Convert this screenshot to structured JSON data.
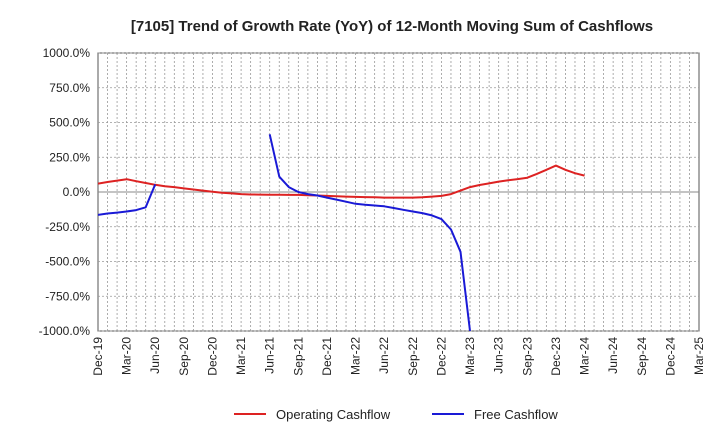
{
  "chart_data": {
    "type": "line",
    "title": "[7105]  Trend of Growth Rate (YoY) of 12-Month Moving Sum of Cashflows",
    "xlabel": "",
    "ylabel": "",
    "ylim": [
      -1000,
      1000
    ],
    "grid": true,
    "legend_position": "bottom",
    "x_tick_labels": [
      "Dec-19",
      "Mar-20",
      "Jun-20",
      "Sep-20",
      "Dec-20",
      "Mar-21",
      "Jun-21",
      "Sep-21",
      "Dec-21",
      "Mar-22",
      "Jun-22",
      "Sep-22",
      "Dec-22",
      "Mar-23",
      "Jun-23",
      "Sep-23",
      "Dec-23",
      "Mar-24",
      "Jun-24",
      "Sep-24",
      "Dec-24",
      "Mar-25"
    ],
    "y_tick_labels": [
      "1000.0%",
      "750.0%",
      "500.0%",
      "250.0%",
      "0.0%",
      "-250.0%",
      "-500.0%",
      "-750.0%",
      "-1000.0%"
    ],
    "y_ticks": [
      1000,
      750,
      500,
      250,
      0,
      -250,
      -500,
      -750,
      -1000
    ],
    "series": [
      {
        "name": "Operating Cashflow",
        "color": "#dd2222",
        "points": [
          [
            "Dec-19",
            60
          ],
          [
            "Jan-20",
            72
          ],
          [
            "Feb-20",
            82
          ],
          [
            "Mar-20",
            92
          ],
          [
            "Apr-20",
            78
          ],
          [
            "May-20",
            65
          ],
          [
            "Jun-20",
            52
          ],
          [
            "Jul-20",
            42
          ],
          [
            "Aug-20",
            35
          ],
          [
            "Sep-20",
            26
          ],
          [
            "Oct-20",
            18
          ],
          [
            "Nov-20",
            10
          ],
          [
            "Dec-20",
            2
          ],
          [
            "Jan-21",
            -5
          ],
          [
            "Feb-21",
            -10
          ],
          [
            "Mar-21",
            -15
          ],
          [
            "Apr-21",
            -18
          ],
          [
            "May-21",
            -19
          ],
          [
            "Jun-21",
            -20
          ],
          [
            "Jul-21",
            -20
          ],
          [
            "Aug-21",
            -21
          ],
          [
            "Sep-21",
            -21
          ],
          [
            "Oct-21",
            -23
          ],
          [
            "Nov-21",
            -25
          ],
          [
            "Dec-21",
            -28
          ],
          [
            "Jan-22",
            -31
          ],
          [
            "Feb-22",
            -33
          ],
          [
            "Mar-22",
            -35
          ],
          [
            "Apr-22",
            -37
          ],
          [
            "May-22",
            -38
          ],
          [
            "Jun-22",
            -40
          ],
          [
            "Jul-22",
            -40
          ],
          [
            "Aug-22",
            -40
          ],
          [
            "Sep-22",
            -40
          ],
          [
            "Oct-22",
            -38
          ],
          [
            "Nov-22",
            -33
          ],
          [
            "Dec-22",
            -28
          ],
          [
            "Jan-23",
            -15
          ],
          [
            "Feb-23",
            10
          ],
          [
            "Mar-23",
            35
          ],
          [
            "Apr-23",
            50
          ],
          [
            "May-23",
            62
          ],
          [
            "Jun-23",
            75
          ],
          [
            "Jul-23",
            85
          ],
          [
            "Aug-23",
            93
          ],
          [
            "Sep-23",
            103
          ],
          [
            "Oct-23",
            130
          ],
          [
            "Nov-23",
            160
          ],
          [
            "Dec-23",
            190
          ],
          [
            "Jan-24",
            160
          ],
          [
            "Feb-24",
            135
          ],
          [
            "Mar-24",
            118
          ]
        ]
      },
      {
        "name": "Free Cashflow",
        "color": "#1a1ad6",
        "segments": [
          [
            [
              "Dec-19",
              -165
            ],
            [
              "Jan-20",
              -155
            ],
            [
              "Feb-20",
              -148
            ],
            [
              "Mar-20",
              -140
            ],
            [
              "Apr-20",
              -130
            ],
            [
              "May-20",
              -110
            ],
            [
              "Jun-20",
              55
            ]
          ],
          [
            [
              "Jun-21",
              415
            ],
            [
              "Jul-21",
              110
            ],
            [
              "Aug-21",
              35
            ],
            [
              "Sep-21",
              0
            ],
            [
              "Oct-21",
              -15
            ],
            [
              "Nov-21",
              -25
            ],
            [
              "Dec-21",
              -40
            ],
            [
              "Jan-22",
              -55
            ],
            [
              "Feb-22",
              -70
            ],
            [
              "Mar-22",
              -85
            ],
            [
              "Apr-22",
              -92
            ],
            [
              "May-22",
              -97
            ],
            [
              "Jun-22",
              -103
            ],
            [
              "Jul-22",
              -115
            ],
            [
              "Aug-22",
              -128
            ],
            [
              "Sep-22",
              -140
            ],
            [
              "Oct-22",
              -152
            ],
            [
              "Nov-22",
              -168
            ],
            [
              "Dec-22",
              -195
            ],
            [
              "Jan-23",
              -270
            ],
            [
              "Feb-23",
              -430
            ],
            [
              "Mar-23",
              -1000
            ]
          ]
        ]
      }
    ]
  }
}
